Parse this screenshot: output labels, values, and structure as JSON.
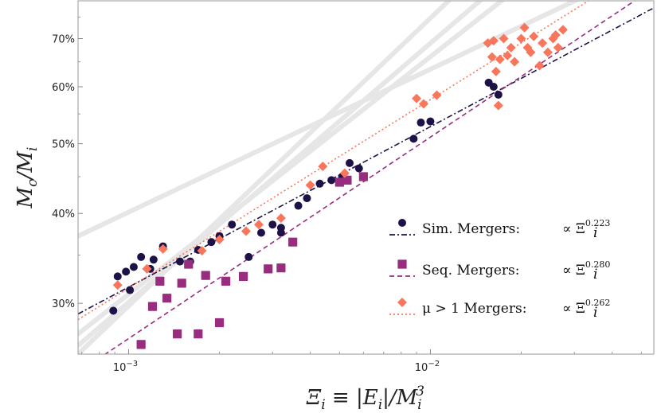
{
  "chart_data": {
    "type": "scatter",
    "title": "",
    "xlabel": "Ξ_i ≡ |E_i|/M_i^3",
    "ylabel": "M_c/M_i",
    "xscale": "log",
    "yscale": "log",
    "xlim": [
      0.00068,
      0.055
    ],
    "ylim": [
      0.255,
      0.79
    ],
    "x_ticks": [
      {
        "value": 0.001,
        "base": "10",
        "exp": "−3"
      },
      {
        "value": 0.01,
        "base": "10",
        "exp": "−2"
      }
    ],
    "y_ticks": [
      {
        "value": 0.3,
        "label": "30%"
      },
      {
        "value": 0.4,
        "label": "40%"
      },
      {
        "value": 0.5,
        "label": "50%"
      },
      {
        "value": 0.6,
        "label": "60%"
      },
      {
        "value": 0.7,
        "label": "70%"
      }
    ],
    "grid": false,
    "legend_position": "bottom-right",
    "series": [
      {
        "name": "Sim.   Mergers:",
        "fit_label": "∝ Ξ",
        "fit_exp": "0.223",
        "marker": "circle",
        "color": "#1d1147",
        "line_style": "dashdot",
        "fit": {
          "exponent": 0.223,
          "anchor_x": 0.001,
          "anchor_y": 0.316
        },
        "points": [
          [
            0.00089,
            0.293
          ],
          [
            0.00092,
            0.327
          ],
          [
            0.00098,
            0.332
          ],
          [
            0.00101,
            0.313
          ],
          [
            0.00104,
            0.337
          ],
          [
            0.0011,
            0.348
          ],
          [
            0.00118,
            0.335
          ],
          [
            0.00121,
            0.345
          ],
          [
            0.0013,
            0.36
          ],
          [
            0.00148,
            0.343
          ],
          [
            0.0016,
            0.343
          ],
          [
            0.0017,
            0.356
          ],
          [
            0.00188,
            0.365
          ],
          [
            0.002,
            0.372
          ],
          [
            0.0022,
            0.386
          ],
          [
            0.0025,
            0.348
          ],
          [
            0.00275,
            0.376
          ],
          [
            0.003,
            0.386
          ],
          [
            0.0032,
            0.382
          ],
          [
            0.0032,
            0.376
          ],
          [
            0.00365,
            0.41
          ],
          [
            0.0039,
            0.42
          ],
          [
            0.0043,
            0.44
          ],
          [
            0.0047,
            0.445
          ],
          [
            0.0051,
            0.45
          ],
          [
            0.0054,
            0.47
          ],
          [
            0.0058,
            0.462
          ],
          [
            0.0088,
            0.508
          ],
          [
            0.0093,
            0.535
          ],
          [
            0.01,
            0.537
          ],
          [
            0.0156,
            0.608
          ],
          [
            0.0162,
            0.6
          ],
          [
            0.0168,
            0.585
          ]
        ]
      },
      {
        "name": "Seq.   Mergers:",
        "fit_label": "∝ Ξ",
        "fit_exp": "0.280",
        "marker": "square",
        "color": "#982d80",
        "line_style": "dashed",
        "fit": {
          "exponent": 0.28,
          "anchor_x": 0.001,
          "anchor_y": 0.268
        },
        "points": [
          [
            0.0011,
            0.263
          ],
          [
            0.0012,
            0.297
          ],
          [
            0.00127,
            0.322
          ],
          [
            0.00134,
            0.305
          ],
          [
            0.00145,
            0.272
          ],
          [
            0.0015,
            0.32
          ],
          [
            0.00158,
            0.34
          ],
          [
            0.0017,
            0.272
          ],
          [
            0.0018,
            0.328
          ],
          [
            0.002,
            0.282
          ],
          [
            0.0021,
            0.322
          ],
          [
            0.0024,
            0.327
          ],
          [
            0.0029,
            0.335
          ],
          [
            0.0032,
            0.336
          ],
          [
            0.0035,
            0.365
          ],
          [
            0.005,
            0.442
          ],
          [
            0.0053,
            0.445
          ],
          [
            0.006,
            0.45
          ]
        ]
      },
      {
        "name": "μ > 1 Mergers:",
        "fit_label": "∝ Ξ",
        "fit_exp": "0.262",
        "marker": "diamond",
        "color": "#f8765c",
        "line_style": "dotted",
        "fit": {
          "exponent": 0.262,
          "anchor_x": 0.001,
          "anchor_y": 0.315
        },
        "points": [
          [
            0.00092,
            0.318
          ],
          [
            0.00115,
            0.335
          ],
          [
            0.0013,
            0.357
          ],
          [
            0.00175,
            0.355
          ],
          [
            0.002,
            0.368
          ],
          [
            0.00245,
            0.378
          ],
          [
            0.0027,
            0.386
          ],
          [
            0.0032,
            0.394
          ],
          [
            0.004,
            0.438
          ],
          [
            0.0044,
            0.465
          ],
          [
            0.0052,
            0.455
          ],
          [
            0.009,
            0.578
          ],
          [
            0.0095,
            0.568
          ],
          [
            0.0105,
            0.584
          ],
          [
            0.0155,
            0.69
          ],
          [
            0.016,
            0.66
          ],
          [
            0.0162,
            0.695
          ],
          [
            0.0165,
            0.63
          ],
          [
            0.0168,
            0.565
          ],
          [
            0.017,
            0.655
          ],
          [
            0.0175,
            0.7
          ],
          [
            0.018,
            0.663
          ],
          [
            0.0185,
            0.68
          ],
          [
            0.019,
            0.65
          ],
          [
            0.02,
            0.7
          ],
          [
            0.0205,
            0.725
          ],
          [
            0.021,
            0.68
          ],
          [
            0.0215,
            0.67
          ],
          [
            0.022,
            0.705
          ],
          [
            0.023,
            0.642
          ],
          [
            0.0235,
            0.69
          ],
          [
            0.0245,
            0.67
          ],
          [
            0.0255,
            0.7
          ],
          [
            0.026,
            0.708
          ],
          [
            0.0265,
            0.68
          ],
          [
            0.0275,
            0.72
          ]
        ]
      }
    ],
    "background_curves_color": "#e6e6e6"
  }
}
